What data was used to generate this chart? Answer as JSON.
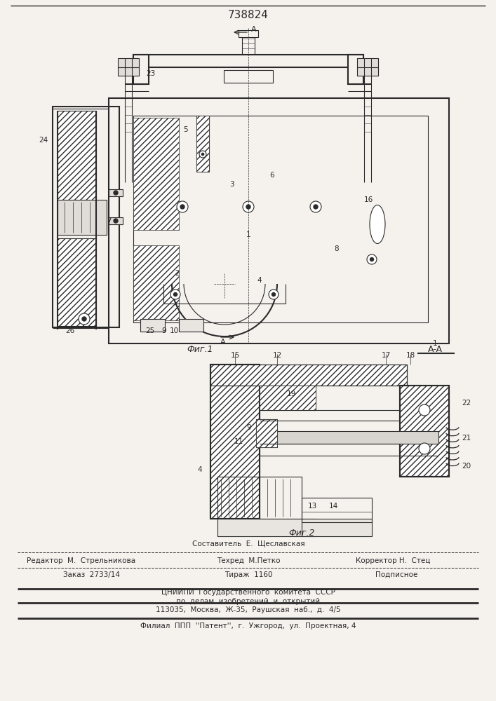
{
  "patent_number": "738824",
  "bg_color": "#f5f2ee",
  "lc": "#2a2a2a",
  "fig1_caption": "Фиг.1",
  "fig2_caption": "Фиг.2",
  "footer_line1_left": "Редактор  М.  Стрельникова",
  "footer_line1_center": "Техред  М.Петко",
  "footer_line1_right": "Корректор Н.  Стец",
  "footer_line0_center": "Составитель  Е.  Щеславская",
  "footer_line2_left": "Заказ  2733/14",
  "footer_line2_center": "Тираж  1160",
  "footer_line2_right": "Подписное",
  "footer_line3": "ЦНИИПИ  Государственного  комитета  СССР",
  "footer_line4": "по  делам  изобретений  и  открытий",
  "footer_line5": "113035,  Москва,  Ж-35,  Раушская  наб.,  д.  4/5",
  "footer_line6": "Филиал  ППП  ''Патент'',  г.  Ужгород,  ул.  Проектная, 4"
}
